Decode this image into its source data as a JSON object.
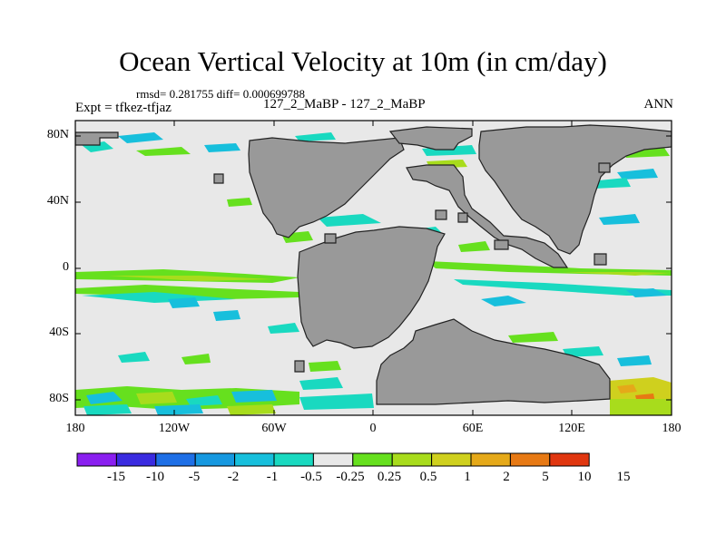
{
  "title": "Ocean Vertical Velocity at 10m (in cm/day)",
  "stats": "rmsd= 0.281755 diff= 0.000699788",
  "left_label": "Expt = tfkez-tfjaz",
  "center_label": "127_2_MaBP - 127_2_MaBP",
  "right_label": "ANN",
  "lat_ticks": [
    "80N",
    "40N",
    "0",
    "40S",
    "80S"
  ],
  "lon_ticks": [
    "180",
    "120W",
    "60W",
    "0",
    "60E",
    "120E",
    "180"
  ],
  "colorbar": {
    "colors": [
      "#8a1ff0",
      "#3a2be0",
      "#1e6fe6",
      "#1698e0",
      "#17bfdc",
      "#19d9c0",
      "#e8e8e8",
      "#66e01e",
      "#a8dc1c",
      "#cfd01e",
      "#e5a919",
      "#e77914",
      "#e0360f"
    ],
    "labels": [
      "-15",
      "-10",
      "-5",
      "-2",
      "-1",
      "-0.5",
      "-0.25",
      "0.25",
      "0.5",
      "1",
      "2",
      "5",
      "10",
      "15"
    ]
  },
  "colors": {
    "ocean": "#e8e8e8",
    "land": "#999999",
    "land_edge": "#222222"
  }
}
